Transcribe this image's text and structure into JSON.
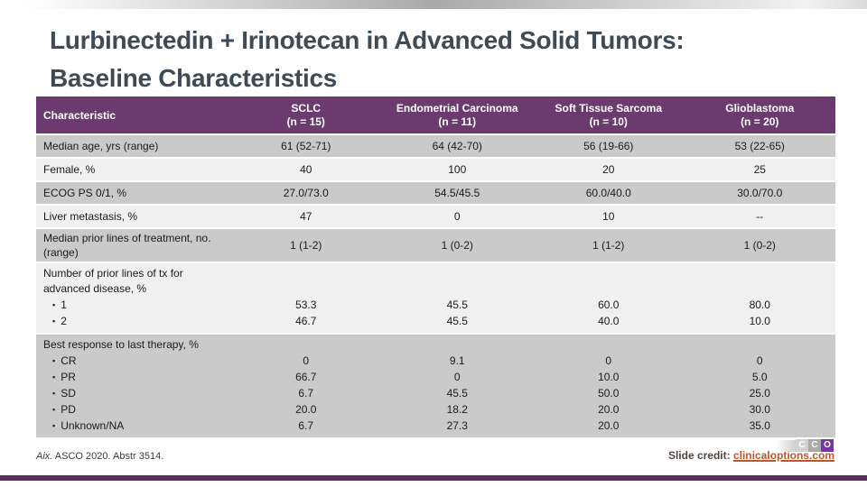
{
  "slide": {
    "title_line1": "Lurbinectedin + Irinotecan in Advanced Solid Tumors:",
    "title_line2": "Baseline Characteristics"
  },
  "colors": {
    "header_purple": "#6B3A6E",
    "row_dark": "#CACACA",
    "row_light": "#F0F0F0",
    "title": "#3E4A56",
    "accent_bar": "#5B2C5E",
    "link": "#C0572B"
  },
  "table": {
    "bullet_char": "▪",
    "columns": [
      {
        "label": "Characteristic",
        "sub": ""
      },
      {
        "label": "SCLC",
        "sub": "(n = 15)"
      },
      {
        "label": "Endometrial Carcinoma",
        "sub": "(n = 11)"
      },
      {
        "label": "Soft Tissue Sarcoma",
        "sub": "(n = 10)"
      },
      {
        "label": "Glioblastoma",
        "sub": "(n = 20)"
      }
    ],
    "rows": [
      {
        "label": "Median age, yrs (range)",
        "shade": "dark",
        "values": [
          "61 (52-71)",
          "64 (42-70)",
          "56 (19-66)",
          "53 (22-65)"
        ]
      },
      {
        "label": "Female, %",
        "shade": "light",
        "values": [
          "40",
          "100",
          "20",
          "25"
        ]
      },
      {
        "label": "ECOG PS 0/1, %",
        "shade": "dark",
        "values": [
          "27.0/73.0",
          "54.5/45.5",
          "60.0/40.0",
          "30.0/70.0"
        ]
      },
      {
        "label": "Liver metastasis, %",
        "shade": "light",
        "values": [
          "47",
          "0",
          "10",
          "--"
        ]
      },
      {
        "label": "Median prior lines of treatment, no. (range)",
        "shade": "dark",
        "values": [
          "1 (1-2)",
          "1 (0-2)",
          "1 (1-2)",
          "1 (0-2)"
        ]
      },
      {
        "label": "Number of prior lines of tx for advanced disease, %",
        "shade": "light",
        "bullets": [
          "1",
          "2"
        ],
        "bullet_values": [
          [
            "53.3",
            "45.5",
            "60.0",
            "80.0"
          ],
          [
            "46.7",
            "45.5",
            "40.0",
            "10.0"
          ]
        ]
      },
      {
        "label": "Best response to last therapy, %",
        "shade": "dark",
        "bullets": [
          "CR",
          "PR",
          "SD",
          "PD",
          "Unknown/NA"
        ],
        "bullet_values": [
          [
            "0",
            "9.1",
            "0",
            "0"
          ],
          [
            "66.7",
            "0",
            "10.0",
            "5.0"
          ],
          [
            "6.7",
            "45.5",
            "50.0",
            "25.0"
          ],
          [
            "20.0",
            "18.2",
            "20.0",
            "30.0"
          ],
          [
            "6.7",
            "27.3",
            "20.0",
            "35.0"
          ]
        ]
      }
    ]
  },
  "footer": {
    "reference_author": "Aix.",
    "reference_rest": " ASCO 2020. Abstr 3514.",
    "credit_label": "Slide credit: ",
    "credit_link": "clinicaloptions.com",
    "logo_letters": [
      "C",
      "C",
      "O"
    ]
  }
}
